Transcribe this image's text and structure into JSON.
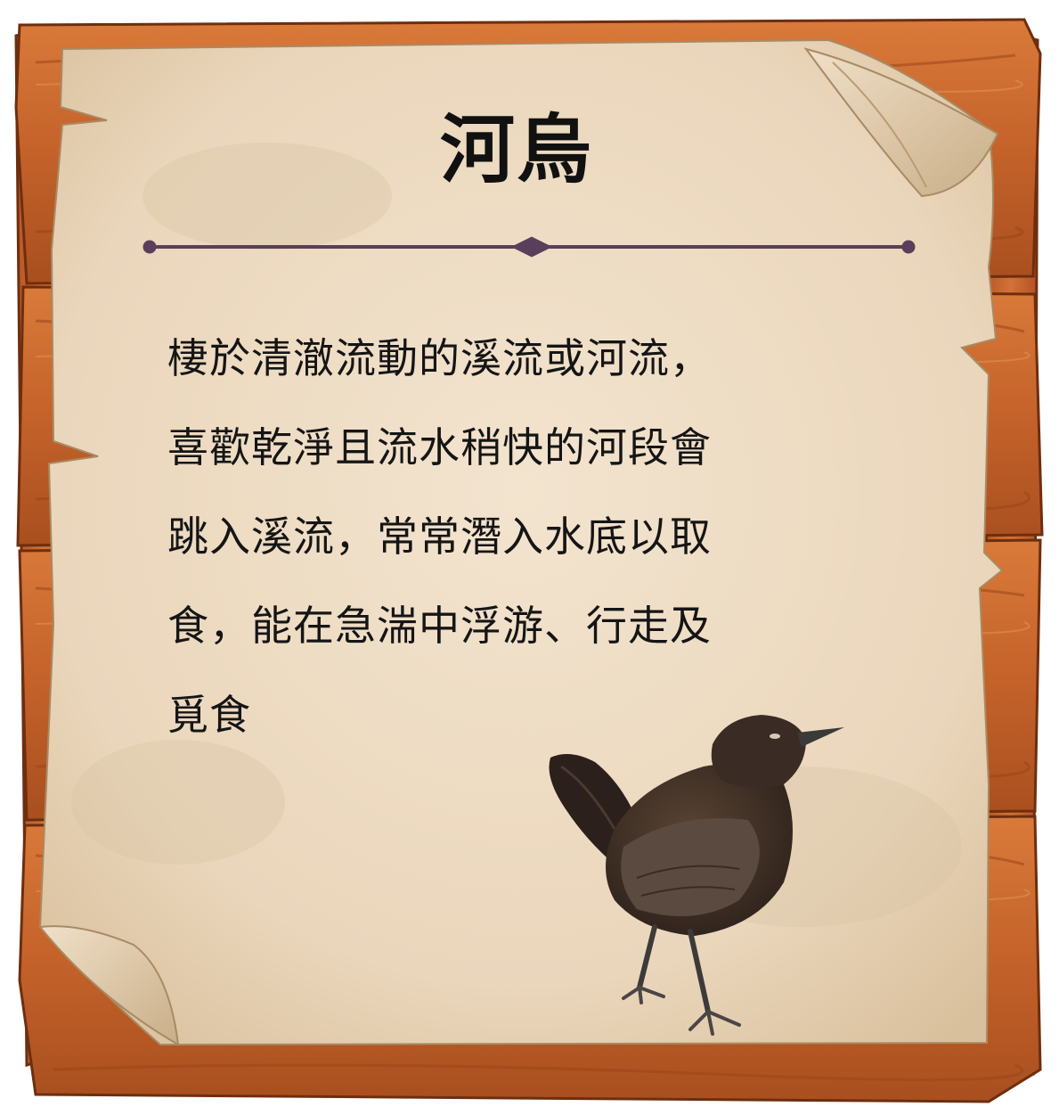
{
  "card": {
    "title": "河烏",
    "description_lines": [
      "棲於清澈流動的溪流或河流，",
      "喜歡乾淨且流水稍快的河段會",
      "跳入溪流，常常潛入水底以取",
      "食，能在急湍中浮游、行走及",
      "覓食"
    ]
  },
  "colors": {
    "wood": "#c8672c",
    "wood_dark": "#8a3d14",
    "paper": "#ecd9bf",
    "divider": "#5a3f5a",
    "bird": "#3a2a22"
  },
  "decor": {
    "frame": "wood-plank-frame",
    "paper": "parchment-scroll",
    "divider": "ornamental-divider",
    "illustration": "dipper-bird"
  }
}
